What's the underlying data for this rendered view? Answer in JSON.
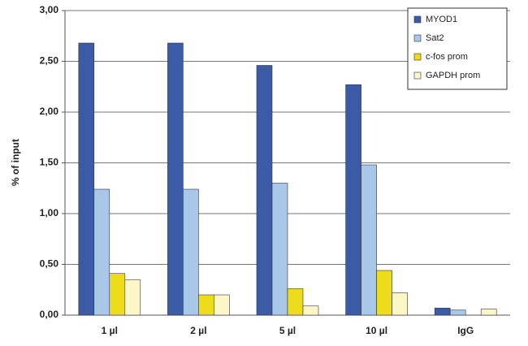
{
  "chart_data": {
    "type": "bar",
    "y_label": "% of input",
    "categories": [
      "1 µl",
      "2 µl",
      "5 µl",
      "10 µl",
      "IgG"
    ],
    "series": [
      {
        "name": "MYOD1",
        "color": "#3b5ba6",
        "values": [
          2.68,
          2.68,
          2.46,
          2.27,
          0.07
        ]
      },
      {
        "name": "Sat2",
        "color": "#a9c7e8",
        "values": [
          1.24,
          1.24,
          1.3,
          1.48,
          0.05
        ]
      },
      {
        "name": "c-fos prom",
        "color": "#ecdc1c",
        "values": [
          0.41,
          0.2,
          0.26,
          0.44,
          0
        ]
      },
      {
        "name": "GAPDH prom",
        "color": "#fdf6c6",
        "values": [
          0.35,
          0.2,
          0.09,
          0.22,
          0.06
        ]
      }
    ],
    "ylim": [
      0,
      3
    ],
    "yticks": [
      {
        "value": 0,
        "label": "0,00"
      },
      {
        "value": 0.5,
        "label": "0,50"
      },
      {
        "value": 1,
        "label": "1,00"
      },
      {
        "value": 1.5,
        "label": "1,50"
      },
      {
        "value": 2,
        "label": "2,00"
      },
      {
        "value": 2.5,
        "label": "2,50"
      },
      {
        "value": 3,
        "label": "3,00"
      }
    ],
    "grid": true,
    "legend": "upper right"
  }
}
